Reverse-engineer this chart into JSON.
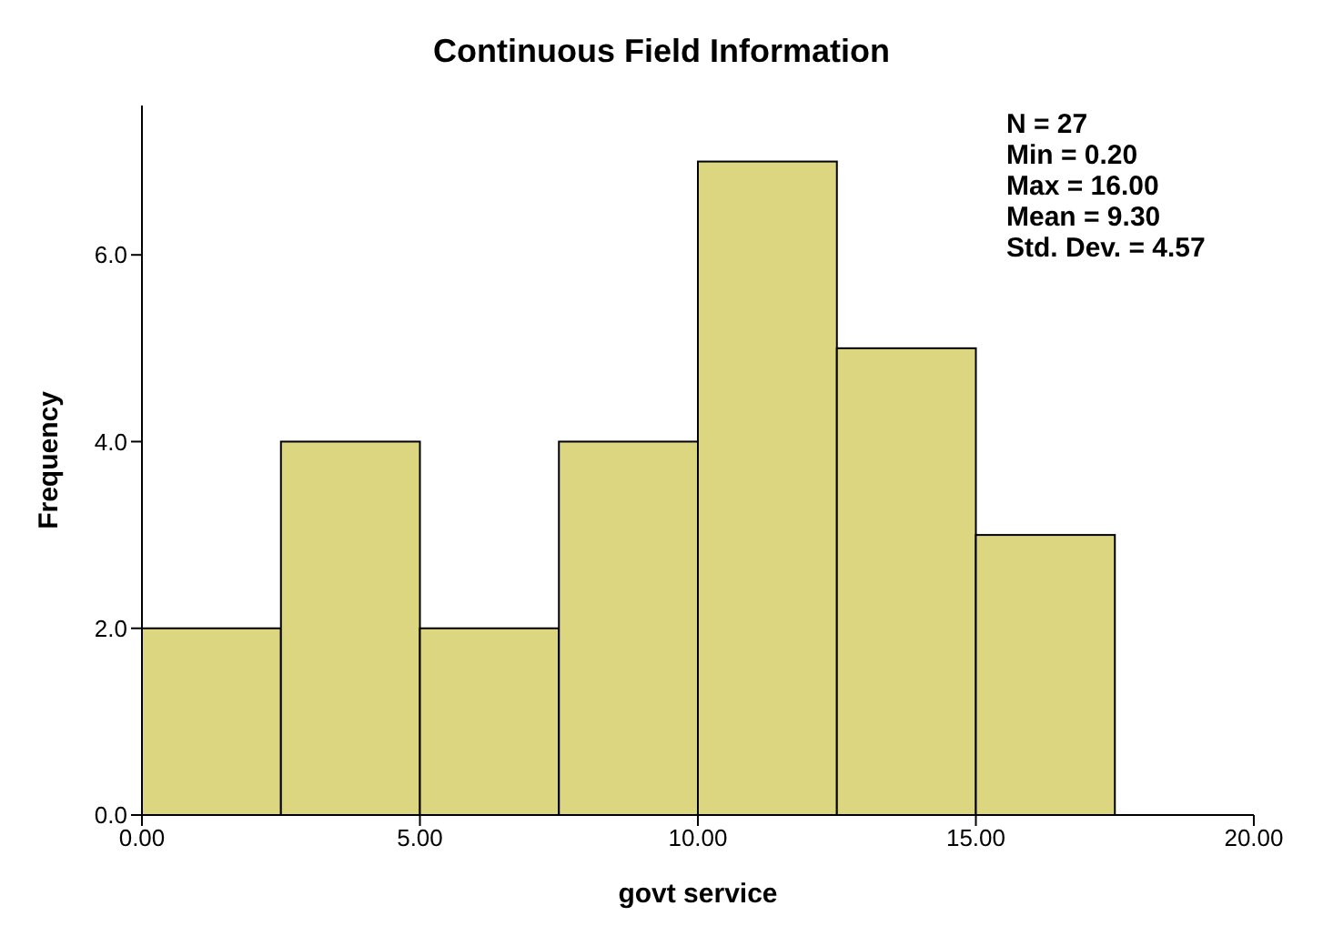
{
  "chart_data": {
    "type": "histogram",
    "title": "Continuous Field Information",
    "xlabel": "govt service",
    "ylabel": "Frequency",
    "bins": [
      0,
      2.5,
      5,
      7.5,
      10,
      12.5,
      15,
      17.5
    ],
    "values": [
      2,
      4,
      2,
      4,
      7,
      5,
      3
    ],
    "color": "#dcd680",
    "xlim": [
      0,
      20
    ],
    "xticks": [
      {
        "value": 0,
        "label": "0.00"
      },
      {
        "value": 5,
        "label": "5.00"
      },
      {
        "value": 10,
        "label": "10.00"
      },
      {
        "value": 15,
        "label": "15.00"
      },
      {
        "value": 20,
        "label": "20.00"
      }
    ],
    "ylim": [
      0,
      7.6
    ],
    "yticks": [
      {
        "value": 0,
        "label": "0.0"
      },
      {
        "value": 2,
        "label": "2.0"
      },
      {
        "value": 4,
        "label": "4.0"
      },
      {
        "value": 6,
        "label": "6.0"
      }
    ],
    "grid": false,
    "legend": false,
    "annotations": [
      "N = 27",
      "Min = 0.20",
      "Max = 16.00",
      "Mean = 9.30",
      "Std. Dev. = 4.57"
    ]
  }
}
